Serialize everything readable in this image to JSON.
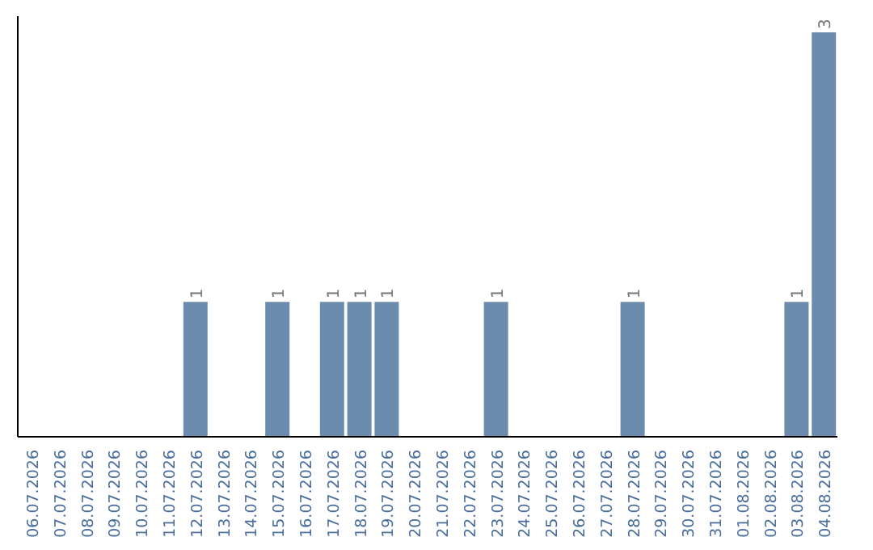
{
  "chart_data": {
    "type": "bar",
    "categories": [
      "06.07.2026",
      "07.07.2026",
      "08.07.2026",
      "09.07.2026",
      "10.07.2026",
      "11.07.2026",
      "12.07.2026",
      "13.07.2026",
      "14.07.2026",
      "15.07.2026",
      "16.07.2026",
      "17.07.2026",
      "18.07.2026",
      "19.07.2026",
      "20.07.2026",
      "21.07.2026",
      "22.07.2026",
      "23.07.2026",
      "24.07.2026",
      "25.07.2026",
      "26.07.2026",
      "27.07.2026",
      "28.07.2026",
      "29.07.2026",
      "30.07.2026",
      "31.07.2026",
      "01.08.2026",
      "02.08.2026",
      "03.08.2026",
      "04.08.2026"
    ],
    "values": [
      0,
      0,
      0,
      0,
      0,
      0,
      1,
      0,
      0,
      1,
      0,
      1,
      1,
      1,
      0,
      0,
      0,
      1,
      0,
      0,
      0,
      0,
      1,
      0,
      0,
      0,
      0,
      0,
      1,
      3
    ],
    "value_labels": [
      null,
      null,
      null,
      null,
      null,
      null,
      "1",
      null,
      null,
      "1",
      null,
      "1",
      "1",
      "1",
      null,
      null,
      null,
      "1",
      null,
      null,
      null,
      null,
      "1",
      null,
      null,
      null,
      null,
      null,
      "1",
      "3"
    ],
    "color": "#6b8cad",
    "grid": false,
    "legend": false
  }
}
